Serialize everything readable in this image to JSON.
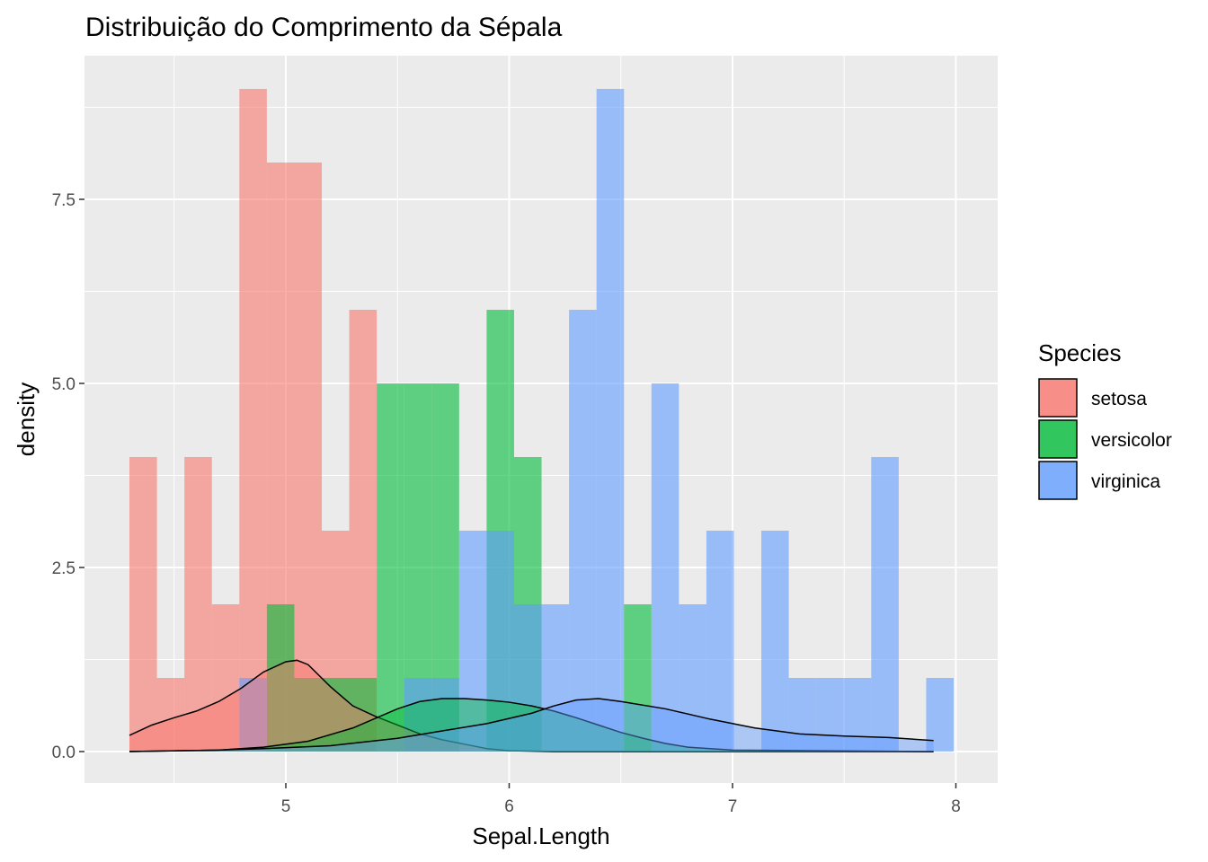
{
  "chart_data": {
    "type": "bar",
    "title": "Distribuição do Comprimento da Sépala",
    "xlabel": "Sepal.Length",
    "ylabel": "density",
    "xlim": [
      4.3,
      8.0
    ],
    "ylim": [
      0,
      9.0
    ],
    "x_ticks": [
      5,
      6,
      7,
      8
    ],
    "x_tick_labels": [
      "5",
      "6",
      "7",
      "8"
    ],
    "y_ticks": [
      0,
      2.5,
      5.0,
      7.5
    ],
    "y_tick_labels": [
      "0.0",
      "2.5",
      "5.0",
      "7.5"
    ],
    "grid": true,
    "legend": {
      "title": "Species",
      "placement": "right",
      "entries": [
        "setosa",
        "versicolor",
        "virginica"
      ]
    },
    "bin_width": 0.123,
    "bin_starts": [
      4.3,
      4.423,
      4.546,
      4.669,
      4.792,
      4.915,
      5.038,
      5.161,
      5.284,
      5.407,
      5.53,
      5.653,
      5.776,
      5.899,
      6.022,
      6.145,
      6.268,
      6.391,
      6.514,
      6.637,
      6.76,
      6.883,
      7.006,
      7.129,
      7.252,
      7.375,
      7.498,
      7.621,
      7.744,
      7.867
    ],
    "series": [
      {
        "name": "setosa",
        "color": "#F8766D",
        "values": [
          4,
          1,
          4,
          2,
          9,
          8,
          8,
          3,
          6,
          0,
          0,
          0,
          0,
          0,
          0,
          0,
          0,
          0,
          0,
          0,
          0,
          0,
          0,
          0,
          0,
          0,
          0,
          0,
          0,
          0
        ],
        "density": [
          [
            4.3,
            0.22
          ],
          [
            4.4,
            0.36
          ],
          [
            4.5,
            0.46
          ],
          [
            4.6,
            0.55
          ],
          [
            4.7,
            0.68
          ],
          [
            4.8,
            0.86
          ],
          [
            4.9,
            1.08
          ],
          [
            5.0,
            1.22
          ],
          [
            5.05,
            1.24
          ],
          [
            5.1,
            1.18
          ],
          [
            5.2,
            0.88
          ],
          [
            5.3,
            0.62
          ],
          [
            5.4,
            0.48
          ],
          [
            5.5,
            0.36
          ],
          [
            5.6,
            0.24
          ],
          [
            5.7,
            0.16
          ],
          [
            5.8,
            0.1
          ],
          [
            5.9,
            0.04
          ],
          [
            6.0,
            0.01
          ],
          [
            6.2,
            0.0
          ],
          [
            7.9,
            0.0
          ]
        ]
      },
      {
        "name": "versicolor",
        "color": "#00BA38",
        "values": [
          0,
          0,
          0,
          0,
          0,
          2,
          1,
          1,
          1,
          5,
          5,
          5,
          0,
          6,
          4,
          0,
          0,
          0,
          2,
          0,
          0,
          0,
          0,
          0,
          0,
          0,
          0,
          0,
          0,
          0
        ],
        "density": [
          [
            4.3,
            0.0
          ],
          [
            4.7,
            0.02
          ],
          [
            4.9,
            0.06
          ],
          [
            5.1,
            0.14
          ],
          [
            5.3,
            0.32
          ],
          [
            5.5,
            0.58
          ],
          [
            5.6,
            0.68
          ],
          [
            5.7,
            0.72
          ],
          [
            5.8,
            0.72
          ],
          [
            5.9,
            0.7
          ],
          [
            6.0,
            0.67
          ],
          [
            6.1,
            0.62
          ],
          [
            6.2,
            0.55
          ],
          [
            6.3,
            0.46
          ],
          [
            6.4,
            0.36
          ],
          [
            6.5,
            0.26
          ],
          [
            6.6,
            0.18
          ],
          [
            6.7,
            0.11
          ],
          [
            6.8,
            0.06
          ],
          [
            7.0,
            0.02
          ],
          [
            7.9,
            0.0
          ]
        ]
      },
      {
        "name": "virginica",
        "color": "#619CFF",
        "values": [
          0,
          0,
          0,
          0,
          1,
          0,
          0,
          0,
          0,
          0,
          1,
          1,
          3,
          3,
          2,
          2,
          6,
          9,
          0,
          5,
          2,
          3,
          0,
          3,
          1,
          1,
          1,
          4,
          0,
          1
        ],
        "density": [
          [
            4.3,
            0.0
          ],
          [
            4.7,
            0.02
          ],
          [
            4.9,
            0.04
          ],
          [
            5.2,
            0.08
          ],
          [
            5.5,
            0.18
          ],
          [
            5.7,
            0.28
          ],
          [
            5.9,
            0.38
          ],
          [
            6.1,
            0.52
          ],
          [
            6.2,
            0.62
          ],
          [
            6.3,
            0.7
          ],
          [
            6.4,
            0.72
          ],
          [
            6.5,
            0.68
          ],
          [
            6.7,
            0.58
          ],
          [
            6.9,
            0.44
          ],
          [
            7.1,
            0.32
          ],
          [
            7.3,
            0.24
          ],
          [
            7.5,
            0.21
          ],
          [
            7.7,
            0.19
          ],
          [
            7.9,
            0.15
          ]
        ]
      }
    ]
  }
}
